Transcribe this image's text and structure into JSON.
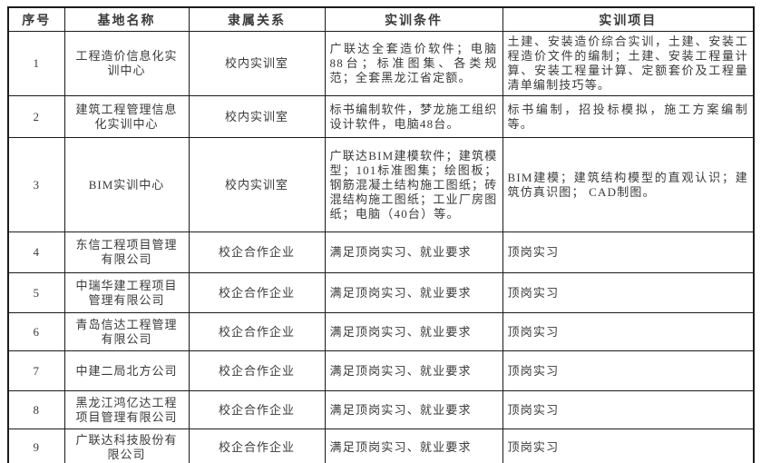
{
  "table": {
    "headers": [
      "序号",
      "基地名称",
      "隶属关系",
      "实训条件",
      "实训项目"
    ],
    "rows": [
      {
        "no": "1",
        "name": "工程造价信息化实训中心",
        "affiliation": "校内实训室",
        "conditions": "广联达全套造价软件；电脑88台；标准图集、各类规范；全套黑龙江省定额。",
        "projects": "土建、安装造价综合实训，土建、安装工程造价文件的编制；土建、安装工程量计算、安装工程量计算、定额套价及工程量清单编制技巧等。"
      },
      {
        "no": "2",
        "name": "建筑工程管理信息化实训中心",
        "affiliation": "校内实训室",
        "conditions": "标书编制软件，梦龙施工组织设计软件，电脑48台。",
        "projects": "标书编制，招投标模拟，施工方案编制等。"
      },
      {
        "no": "3",
        "name": "BIM实训中心",
        "affiliation": "校内实训室",
        "conditions": "广联达BIM建模软件；建筑模型；101标准图集；绘图板；钢筋混凝土结构施工图纸；砖混结构施工图纸；工业厂房图纸；电脑（40台）等。",
        "projects": "BIM建模；建筑结构模型的直观认识；建筑仿真识图； CAD制图。"
      },
      {
        "no": "4",
        "name": "东信工程项目管理有限公司",
        "affiliation": "校企合作企业",
        "conditions": "满足顶岗实习、就业要求",
        "projects": "顶岗实习"
      },
      {
        "no": "5",
        "name": "中瑞华建工程项目管理有限公司",
        "affiliation": "校企合作企业",
        "conditions": "满足顶岗实习、就业要求",
        "projects": "顶岗实习"
      },
      {
        "no": "6",
        "name": "青岛信达工程管理有限公司",
        "affiliation": "校企合作企业",
        "conditions": "满足顶岗实习、就业要求",
        "projects": "顶岗实习"
      },
      {
        "no": "7",
        "name": "中建二局北方公司",
        "affiliation": "校企合作企业",
        "conditions": "满足顶岗实习、就业要求",
        "projects": "顶岗实习"
      },
      {
        "no": "8",
        "name": "黑龙江鸿亿达工程项目管理有限公司",
        "affiliation": "校企合作企业",
        "conditions": "满足顶岗实习、就业要求",
        "projects": "顶岗实习"
      },
      {
        "no": "9",
        "name": "广联达科技股份有限公司",
        "affiliation": "校企合作企业",
        "conditions": "满足顶岗实习、就业要求",
        "projects": "顶岗实习"
      }
    ],
    "colors": {
      "border": "#1b1b1b",
      "text": "#3a3a3a",
      "background": "#ffffff"
    }
  }
}
